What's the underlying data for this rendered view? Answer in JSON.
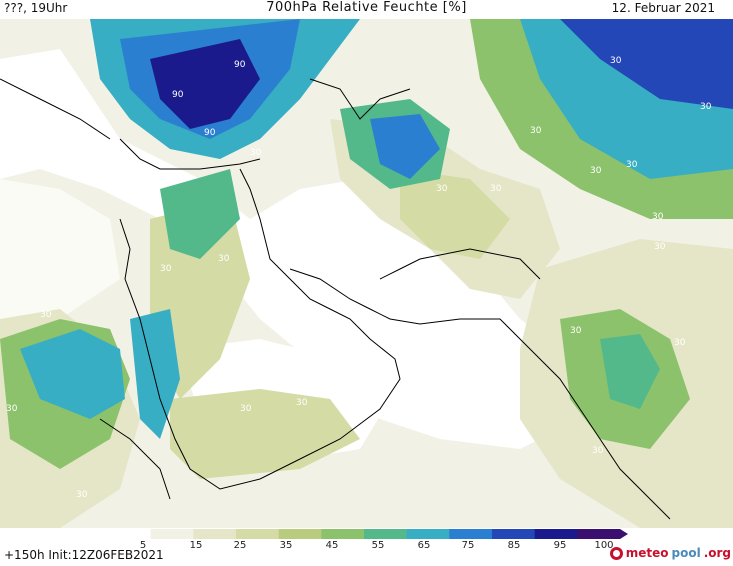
{
  "header": {
    "left": "???, 19Uhr",
    "title": "700hPa Relative Feuchte [%]",
    "date": "12. Februar 2021"
  },
  "footer": {
    "init": "+150h Init:12Z06FEB2021",
    "logo_part1": "meteo",
    "logo_part2": "pool",
    "logo_part3": ".org"
  },
  "colorbar": {
    "ticks": [
      "5",
      "15",
      "25",
      "35",
      "45",
      "55",
      "65",
      "75",
      "85",
      "95",
      "100"
    ],
    "colors": [
      "#ffffff",
      "#f2f1e6",
      "#e4e6c7",
      "#d4dba5",
      "#b9cc7e",
      "#8cc26c",
      "#54b98a",
      "#37aec3",
      "#2b7fd0",
      "#2447b8",
      "#1a1a8c",
      "#3b0f70"
    ]
  },
  "map": {
    "contour_labels": [
      "30",
      "90"
    ]
  }
}
